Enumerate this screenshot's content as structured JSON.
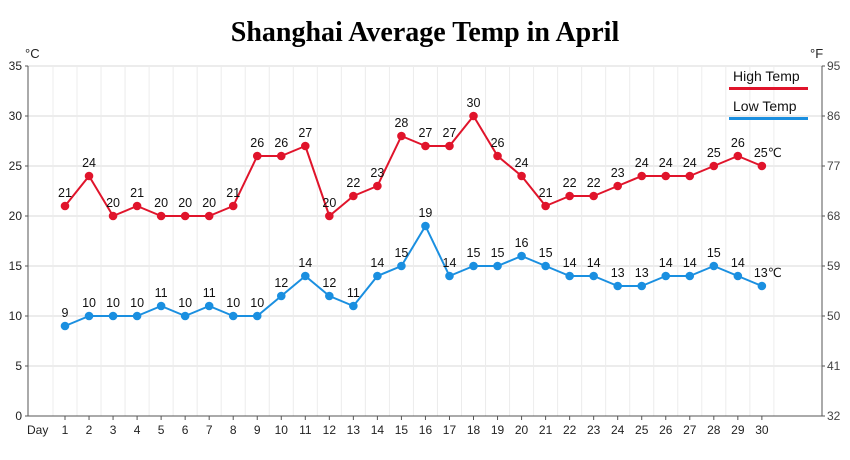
{
  "chart_data": {
    "type": "line",
    "title": "Shanghai Average Temp in April",
    "x_axis_label": "Day",
    "x": [
      1,
      2,
      3,
      4,
      5,
      6,
      7,
      8,
      9,
      10,
      11,
      12,
      13,
      14,
      15,
      16,
      17,
      18,
      19,
      20,
      21,
      22,
      23,
      24,
      25,
      26,
      27,
      28,
      29,
      30
    ],
    "y_left_unit": "°C",
    "y_right_unit": "°F",
    "y_left_ticks": [
      0,
      5,
      10,
      15,
      20,
      25,
      30,
      35
    ],
    "y_right_ticks": [
      32,
      41,
      50,
      59,
      68,
      77,
      86,
      95
    ],
    "ylim": [
      0,
      35
    ],
    "grid": true,
    "legend_position": "top-right",
    "series": [
      {
        "name": "High Temp",
        "color": "#e0142b",
        "values": [
          21,
          24,
          20,
          21,
          20,
          20,
          20,
          21,
          26,
          26,
          27,
          20,
          22,
          23,
          28,
          27,
          27,
          30,
          26,
          24,
          21,
          22,
          22,
          23,
          24,
          24,
          24,
          25,
          26,
          25
        ],
        "end_label": "25℃"
      },
      {
        "name": "Low Temp",
        "color": "#1a8fe0",
        "values": [
          9,
          10,
          10,
          10,
          11,
          10,
          11,
          10,
          10,
          12,
          14,
          12,
          11,
          14,
          15,
          19,
          14,
          15,
          15,
          16,
          15,
          14,
          14,
          13,
          13,
          14,
          14,
          15,
          14,
          13
        ],
        "end_label": "13℃"
      }
    ]
  }
}
